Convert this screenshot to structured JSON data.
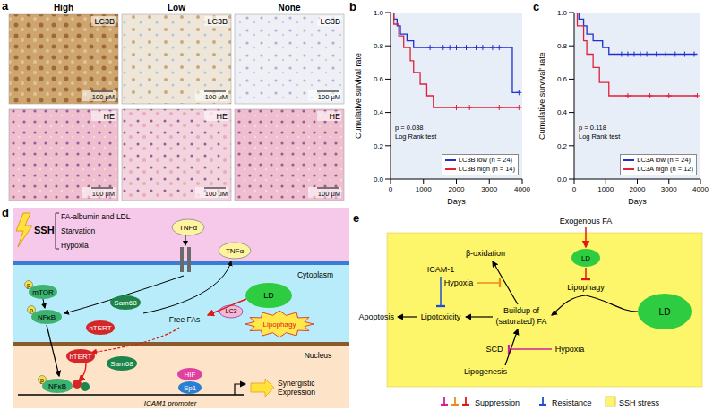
{
  "chart_data": [
    {
      "panel": "b",
      "type": "line",
      "line_style": "step",
      "x_label": "Days",
      "y_label": "Cumulative survival rate",
      "xlim": [
        0,
        4000
      ],
      "xticks": [
        0,
        1000,
        2000,
        3000,
        4000
      ],
      "ylim": [
        0,
        1
      ],
      "yticks": [
        {
          "value": 0,
          "label": "0.0"
        },
        0.2,
        0.4,
        0.6,
        0.8,
        {
          "value": 1,
          "label": "1.0"
        }
      ],
      "grid": false,
      "legend": "lower right",
      "annotations": [
        "p = 0.038",
        "Log Rank test"
      ],
      "series": [
        {
          "name": "LC3B low (n = 24)",
          "color": "#1f2fd0",
          "marker": "plus",
          "x": [
            0,
            100,
            200,
            300,
            500,
            700,
            3700,
            3900
          ],
          "values": [
            1,
            0.96,
            0.92,
            0.87,
            0.83,
            0.79,
            0.52,
            0.52
          ],
          "censored_x": [
            1200,
            1600,
            1800,
            2000,
            2300,
            2600,
            2800,
            3100,
            3300,
            3900
          ],
          "censored_values": [
            0.79,
            0.79,
            0.79,
            0.79,
            0.79,
            0.79,
            0.79,
            0.79,
            0.79,
            0.52
          ]
        },
        {
          "name": "LC3B high (n = 14)",
          "color": "#e0203a",
          "marker": "plus",
          "x": [
            0,
            100,
            250,
            400,
            600,
            700,
            900,
            1100,
            1300,
            3900
          ],
          "values": [
            1,
            0.93,
            0.86,
            0.79,
            0.71,
            0.64,
            0.57,
            0.5,
            0.43,
            0.43
          ],
          "censored_x": [
            2000,
            2400,
            3300,
            3900
          ],
          "censored_values": [
            0.43,
            0.43,
            0.43,
            0.43
          ]
        }
      ]
    },
    {
      "panel": "c",
      "type": "line",
      "line_style": "step",
      "x_label": "Days",
      "y_label": "Cumulative survival' rate",
      "xlim": [
        0,
        4000
      ],
      "xticks": [
        0,
        1000,
        2000,
        3000,
        4000
      ],
      "ylim": [
        0,
        1
      ],
      "yticks": [
        {
          "value": 0,
          "label": "0.0"
        },
        0.2,
        0.4,
        0.6,
        0.8,
        {
          "value": 1,
          "label": "1.0"
        }
      ],
      "grid": false,
      "legend": "lower right",
      "annotations": [
        "p = 0.118",
        "Log Rank test"
      ],
      "series": [
        {
          "name": "LC3A low (n = 24)",
          "color": "#1f2fd0",
          "marker": "plus",
          "x": [
            0,
            150,
            300,
            400,
            600,
            900,
            1100,
            3900
          ],
          "values": [
            1,
            0.96,
            0.92,
            0.87,
            0.83,
            0.79,
            0.75,
            0.75
          ],
          "censored_x": [
            1500,
            1700,
            1900,
            2100,
            2300,
            2600,
            2900,
            3200,
            3500,
            3800
          ],
          "censored_values": [
            0.75,
            0.75,
            0.75,
            0.75,
            0.75,
            0.75,
            0.75,
            0.75,
            0.75,
            0.75
          ]
        },
        {
          "name": "LC3A high (n = 12)",
          "color": "#e0203a",
          "marker": "plus",
          "x": [
            0,
            100,
            300,
            400,
            600,
            800,
            1100,
            3900
          ],
          "values": [
            1,
            0.92,
            0.83,
            0.75,
            0.67,
            0.58,
            0.5,
            0.5
          ],
          "censored_x": [
            1700,
            2400,
            3000,
            3900
          ],
          "censored_values": [
            0.5,
            0.5,
            0.5,
            0.5
          ]
        }
      ]
    }
  ],
  "panel_a": {
    "label": "a",
    "columns": [
      "High",
      "Low",
      "None"
    ],
    "stains": [
      "LC3B",
      "HE"
    ],
    "scale_bar": "100 μM"
  },
  "panel_d": {
    "label": "d",
    "stress": "SSH",
    "stimuli": [
      "FA-albumin and LDL",
      "Starvation",
      "Hypoxia"
    ],
    "ligand": "TNFα",
    "compartments": [
      "Cytoplasm",
      "Nucleus"
    ],
    "phospho": "p",
    "nodes": {
      "mTOR": "mTOR",
      "NFkB": "NFκB",
      "Sam68": "Sam68",
      "hTERT": "hTERT",
      "LD": "LD",
      "LC3": "LC3",
      "lipophagy": "Lipophagy",
      "free_fa": "Free FAs",
      "HIF": "HIF",
      "Sp1": "Sp1"
    },
    "promoter": "ICAM1 promoter",
    "output": [
      "Synergistic",
      "Expression"
    ]
  },
  "panel_e": {
    "label": "e",
    "nodes": {
      "exo": "Exogenous FA",
      "ld_small": "LD",
      "beta": "β-oxidation",
      "hypoxia": "Hypoxia",
      "icam": "ICAM-1",
      "lipophagy": "Lipophagy",
      "lipotox": "Lipotoxicity",
      "apoptosis": "Apoptosis",
      "buildup": [
        "Buildup of",
        "(saturated) FA"
      ],
      "ld_big": "LD",
      "scd": "SCD",
      "lipogenesis": "Lipogenesis"
    },
    "legend": {
      "suppression": "Suppression",
      "resistance": "Resistance",
      "stress": "SSH stress"
    }
  }
}
